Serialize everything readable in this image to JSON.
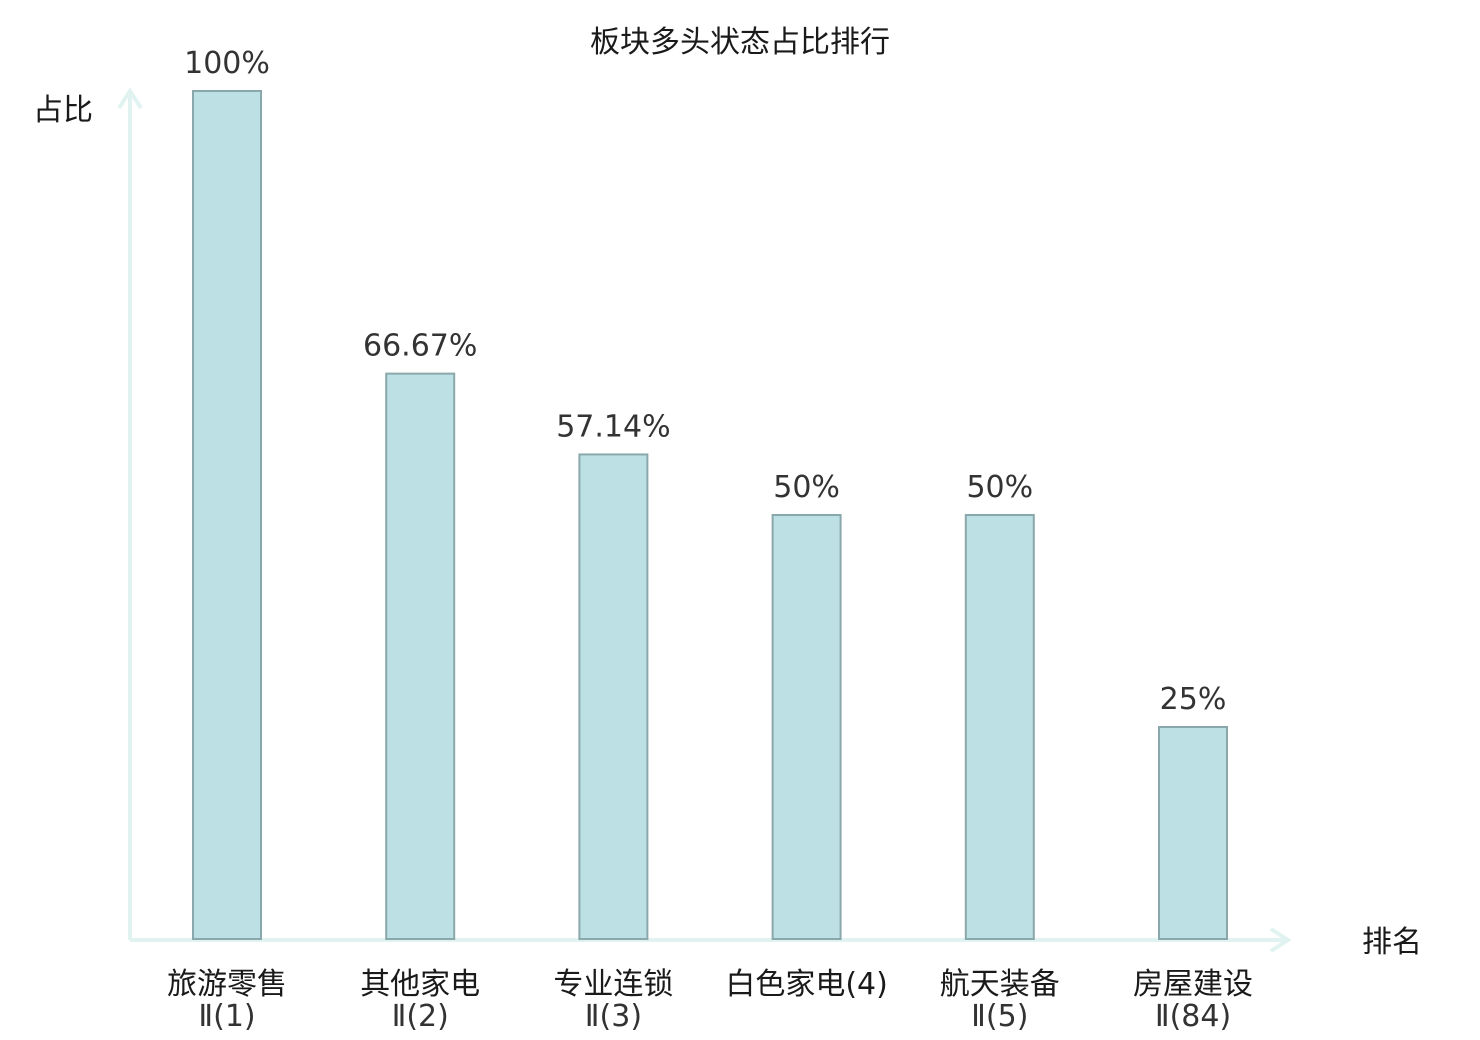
{
  "chart_data": {
    "type": "bar",
    "title": "板块多头状态占比排行",
    "xlabel": "排名",
    "ylabel": "占比",
    "ylim": [
      0,
      100
    ],
    "grid": false,
    "categories": [
      {
        "name": "旅游零售",
        "sub": "Ⅱ(1)",
        "value": 100,
        "label": "100%",
        "highlight": false
      },
      {
        "name": "其他家电",
        "sub": "Ⅱ(2)",
        "value": 66.67,
        "label": "66.67%",
        "highlight": false
      },
      {
        "name": "专业连锁",
        "sub": "Ⅱ(3)",
        "value": 57.14,
        "label": "57.14%",
        "highlight": false
      },
      {
        "name": "白色家电(4)",
        "sub": "",
        "value": 50,
        "label": "50%",
        "highlight": false
      },
      {
        "name": "航天装备",
        "sub": "Ⅱ(5)",
        "value": 50,
        "label": "50%",
        "highlight": false
      },
      {
        "name": "房屋建设",
        "sub": "Ⅱ(84)",
        "value": 25,
        "label": "25%",
        "highlight": true
      }
    ],
    "colors": {
      "bar_fill": "#bce0e3",
      "bar_stroke": "#8aa8ab",
      "axis": "#e0f3f1",
      "text": "#1a1a1a",
      "label": "#333333",
      "highlight": "#e02020"
    }
  }
}
